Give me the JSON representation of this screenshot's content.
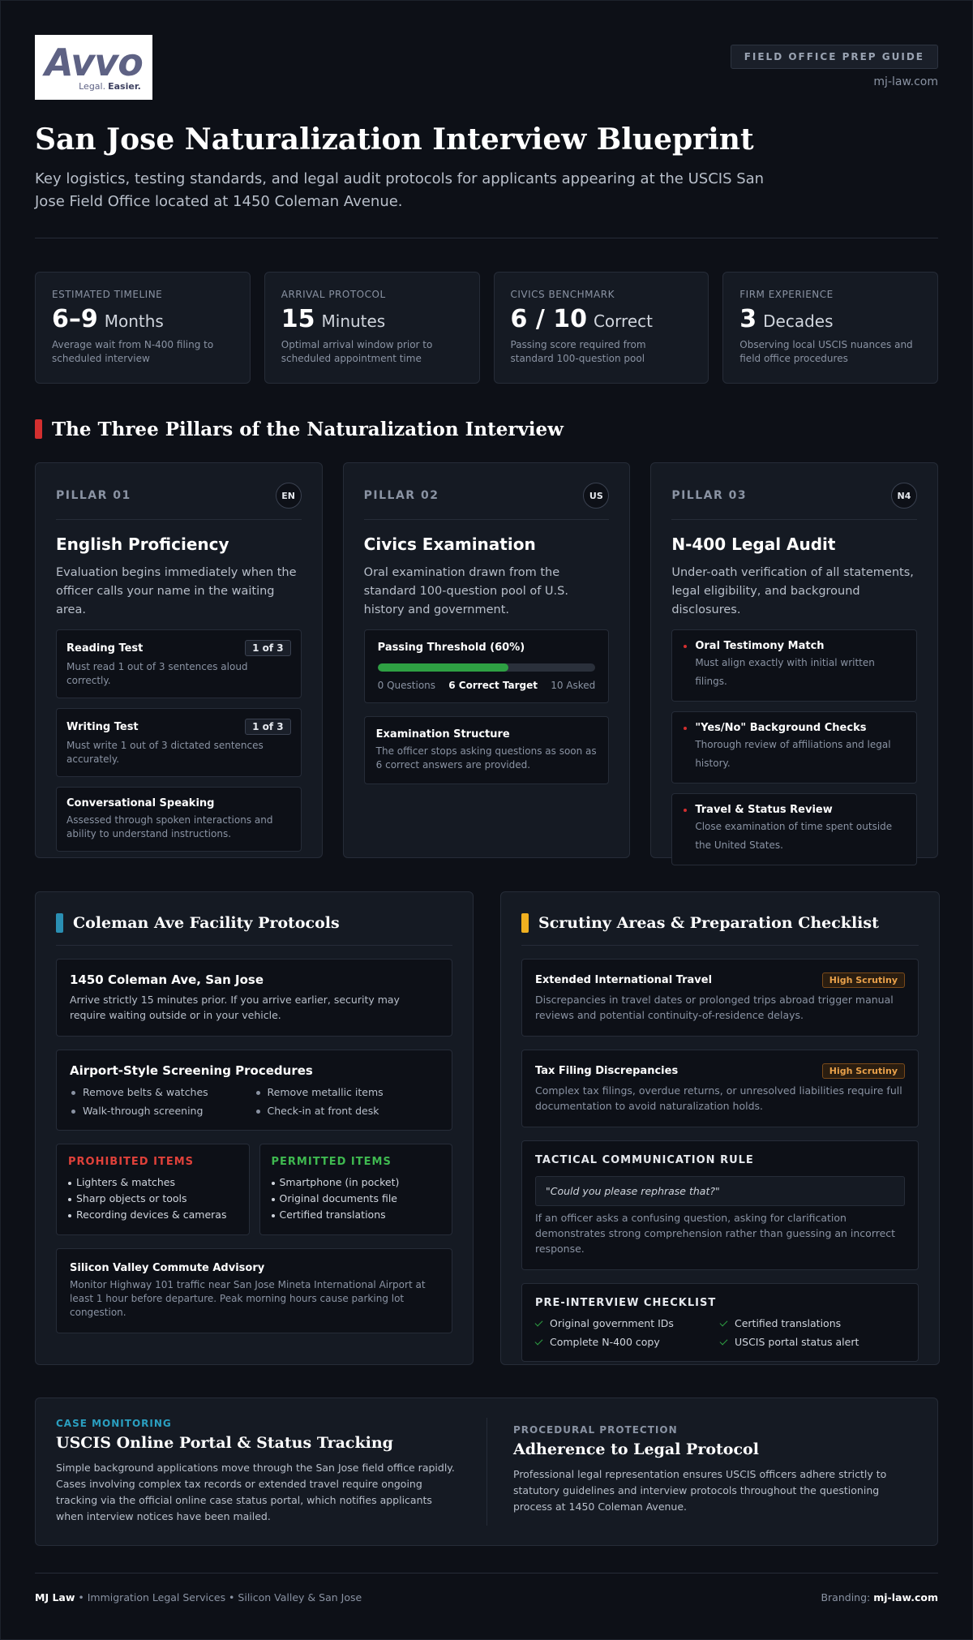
{
  "header": {
    "logo": {
      "brand": "Avvo",
      "tagline_1": "Legal.",
      "tagline_2": "Easier."
    },
    "badge": "FIELD OFFICE PREP GUIDE",
    "site": "mj-law.com",
    "title": "San Jose Naturalization Interview Blueprint",
    "subtitle": "Key logistics, testing standards, and legal audit protocols for applicants appearing at the USCIS San Jose Field Office located at 1450 Coleman Avenue."
  },
  "stats": [
    {
      "label": "ESTIMATED TIMELINE",
      "value": "6–9",
      "unit": "Months",
      "note": "Average wait from N-400 filing to scheduled interview"
    },
    {
      "label": "ARRIVAL PROTOCOL",
      "value": "15",
      "unit": "Minutes",
      "note": "Optimal arrival window prior to scheduled appointment time"
    },
    {
      "label": "CIVICS BENCHMARK",
      "value": "6 / 10",
      "unit": "Correct",
      "note": "Passing score required from standard 100-question pool"
    },
    {
      "label": "FIRM EXPERIENCE",
      "value": "3",
      "unit": "Decades",
      "note": "Observing local USCIS nuances and field office procedures"
    }
  ],
  "pillars": {
    "heading": "The Three Pillars of the Naturalization Interview",
    "items": [
      {
        "tag": "PILLAR 01",
        "code": "EN",
        "title": "English Proficiency",
        "desc": "Evaluation begins immediately when the officer calls your name in the waiting area.",
        "tests": [
          {
            "title": "Reading Test",
            "badge": "1 of 3",
            "text": "Must read 1 out of 3 sentences aloud correctly."
          },
          {
            "title": "Writing Test",
            "badge": "1 of 3",
            "text": "Must write 1 out of 3 dictated sentences accurately."
          },
          {
            "title": "Conversational Speaking",
            "text": "Assessed through spoken interactions and ability to understand instructions."
          }
        ]
      },
      {
        "tag": "PILLAR 02",
        "code": "US",
        "title": "Civics Examination",
        "desc": "Oral examination drawn from the standard 100-question pool of U.S. history and government.",
        "threshold": {
          "title": "Passing Threshold (60%)",
          "progress": 60,
          "min_label": "0 Questions",
          "target": "6 Correct Target",
          "max_label": "10 Asked"
        },
        "structure": {
          "title": "Examination Structure",
          "text": "The officer stops asking questions as soon as 6 correct answers are provided."
        }
      },
      {
        "tag": "PILLAR 03",
        "code": "N4",
        "title": "N-400 Legal Audit",
        "desc": "Under-oath verification of all statements, legal eligibility, and background disclosures.",
        "checks": [
          {
            "title": "Oral Testimony Match",
            "text": "Must align exactly with initial written filings."
          },
          {
            "title": "\"Yes/No\" Background Checks",
            "text": "Thorough review of affiliations and legal history."
          },
          {
            "title": "Travel & Status Review",
            "text": "Close examination of time spent outside the United States."
          }
        ]
      }
    ]
  },
  "facility": {
    "heading": "Coleman Ave Facility Protocols",
    "address": {
      "title": "1450 Coleman Ave, San Jose",
      "text": "Arrive strictly 15 minutes prior. If you arrive earlier, security may require waiting outside or in your vehicle."
    },
    "screening": {
      "title": "Airport-Style Screening Procedures",
      "items": [
        "Remove belts & watches",
        "Remove metallic items",
        "Walk-through screening",
        "Check-in at front desk"
      ]
    },
    "prohibited": {
      "title": "PROHIBITED ITEMS",
      "items": [
        "Lighters & matches",
        "Sharp objects or tools",
        "Recording devices & cameras"
      ]
    },
    "permitted": {
      "title": "PERMITTED ITEMS",
      "items": [
        "Smartphone (in pocket)",
        "Original documents file",
        "Certified translations"
      ]
    },
    "advisory": {
      "title": "Silicon Valley Commute Advisory",
      "text": "Monitor Highway 101 traffic near San Jose Mineta International Airport at least 1 hour before departure. Peak morning hours cause parking lot congestion."
    }
  },
  "scrutiny": {
    "heading": "Scrutiny Areas & Preparation Checklist",
    "areas": [
      {
        "title": "Extended International Travel",
        "badge": "High Scrutiny",
        "text": "Discrepancies in travel dates or prolonged trips abroad trigger manual reviews and potential continuity-of-residence delays."
      },
      {
        "title": "Tax Filing Discrepancies",
        "badge": "High Scrutiny",
        "text": "Complex tax filings, overdue returns, or unresolved liabilities require full documentation to avoid naturalization holds."
      }
    ],
    "rule": {
      "title": "TACTICAL COMMUNICATION RULE",
      "quote": "\"Could you please rephrase that?\"",
      "text": "If an officer asks a confusing question, asking for clarification demonstrates strong comprehension rather than guessing an incorrect response."
    },
    "checklist": {
      "title": "PRE-INTERVIEW CHECKLIST",
      "items": [
        "Original government IDs",
        "Certified translations",
        "Complete N-400 copy",
        "USCIS portal status alert"
      ]
    }
  },
  "monitoring": {
    "kicker": "CASE MONITORING",
    "title": "USCIS Online Portal & Status Tracking",
    "text": "Simple background applications move through the San Jose field office rapidly. Cases involving complex tax records or extended travel require ongoing tracking via the official online case status portal, which notifies applicants when interview notices have been mailed."
  },
  "protection": {
    "kicker": "PROCEDURAL PROTECTION",
    "title": "Adherence to Legal Protocol",
    "text": "Professional legal representation ensures USCIS officers adhere strictly to statutory guidelines and interview protocols throughout the questioning process at 1450 Coleman Avenue."
  },
  "footer": {
    "brand": "MJ Law",
    "text": "• Immigration Legal Services • Silicon Valley & San Jose",
    "branding_label": "Branding:",
    "branding_site": "mj-law.com"
  }
}
